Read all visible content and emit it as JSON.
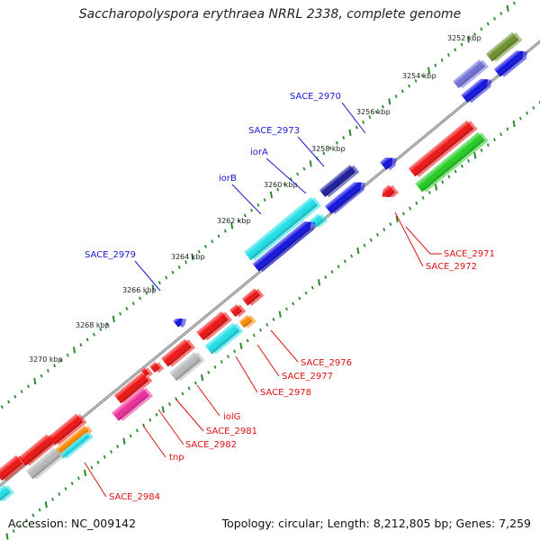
{
  "title": "Saccharopolyspora erythraea NRRL 2338, complete genome",
  "footer": {
    "accession": "Accession: NC_009142",
    "summary": "Topology: circular; Length: 8,212,805 bp; Genes: 7,259"
  },
  "colors": {
    "backbone": "#8a8a8a",
    "tick": "#2a8a2a",
    "label_top": "#1a1ad0",
    "label_bottom": "#dd1111"
  },
  "scale_marks": [
    "3252 kbp",
    "3254 kbp",
    "3256 kbp",
    "3258 kbp",
    "3260 kbp",
    "3262 kbp",
    "3264 kbp",
    "3266 kbp",
    "3268 kbp",
    "3270 kbp"
  ],
  "top_labels": [
    "SACE_2970",
    "SACE_2973",
    "iorA",
    "iorB",
    "SACE_2979"
  ],
  "bottom_labels": [
    "SACE_2971",
    "SACE_2972",
    "SACE_2976",
    "SACE_2977",
    "SACE_2978",
    "iolG",
    "SACE_2981",
    "SACE_2982",
    "tnp",
    "SACE_2984"
  ]
}
